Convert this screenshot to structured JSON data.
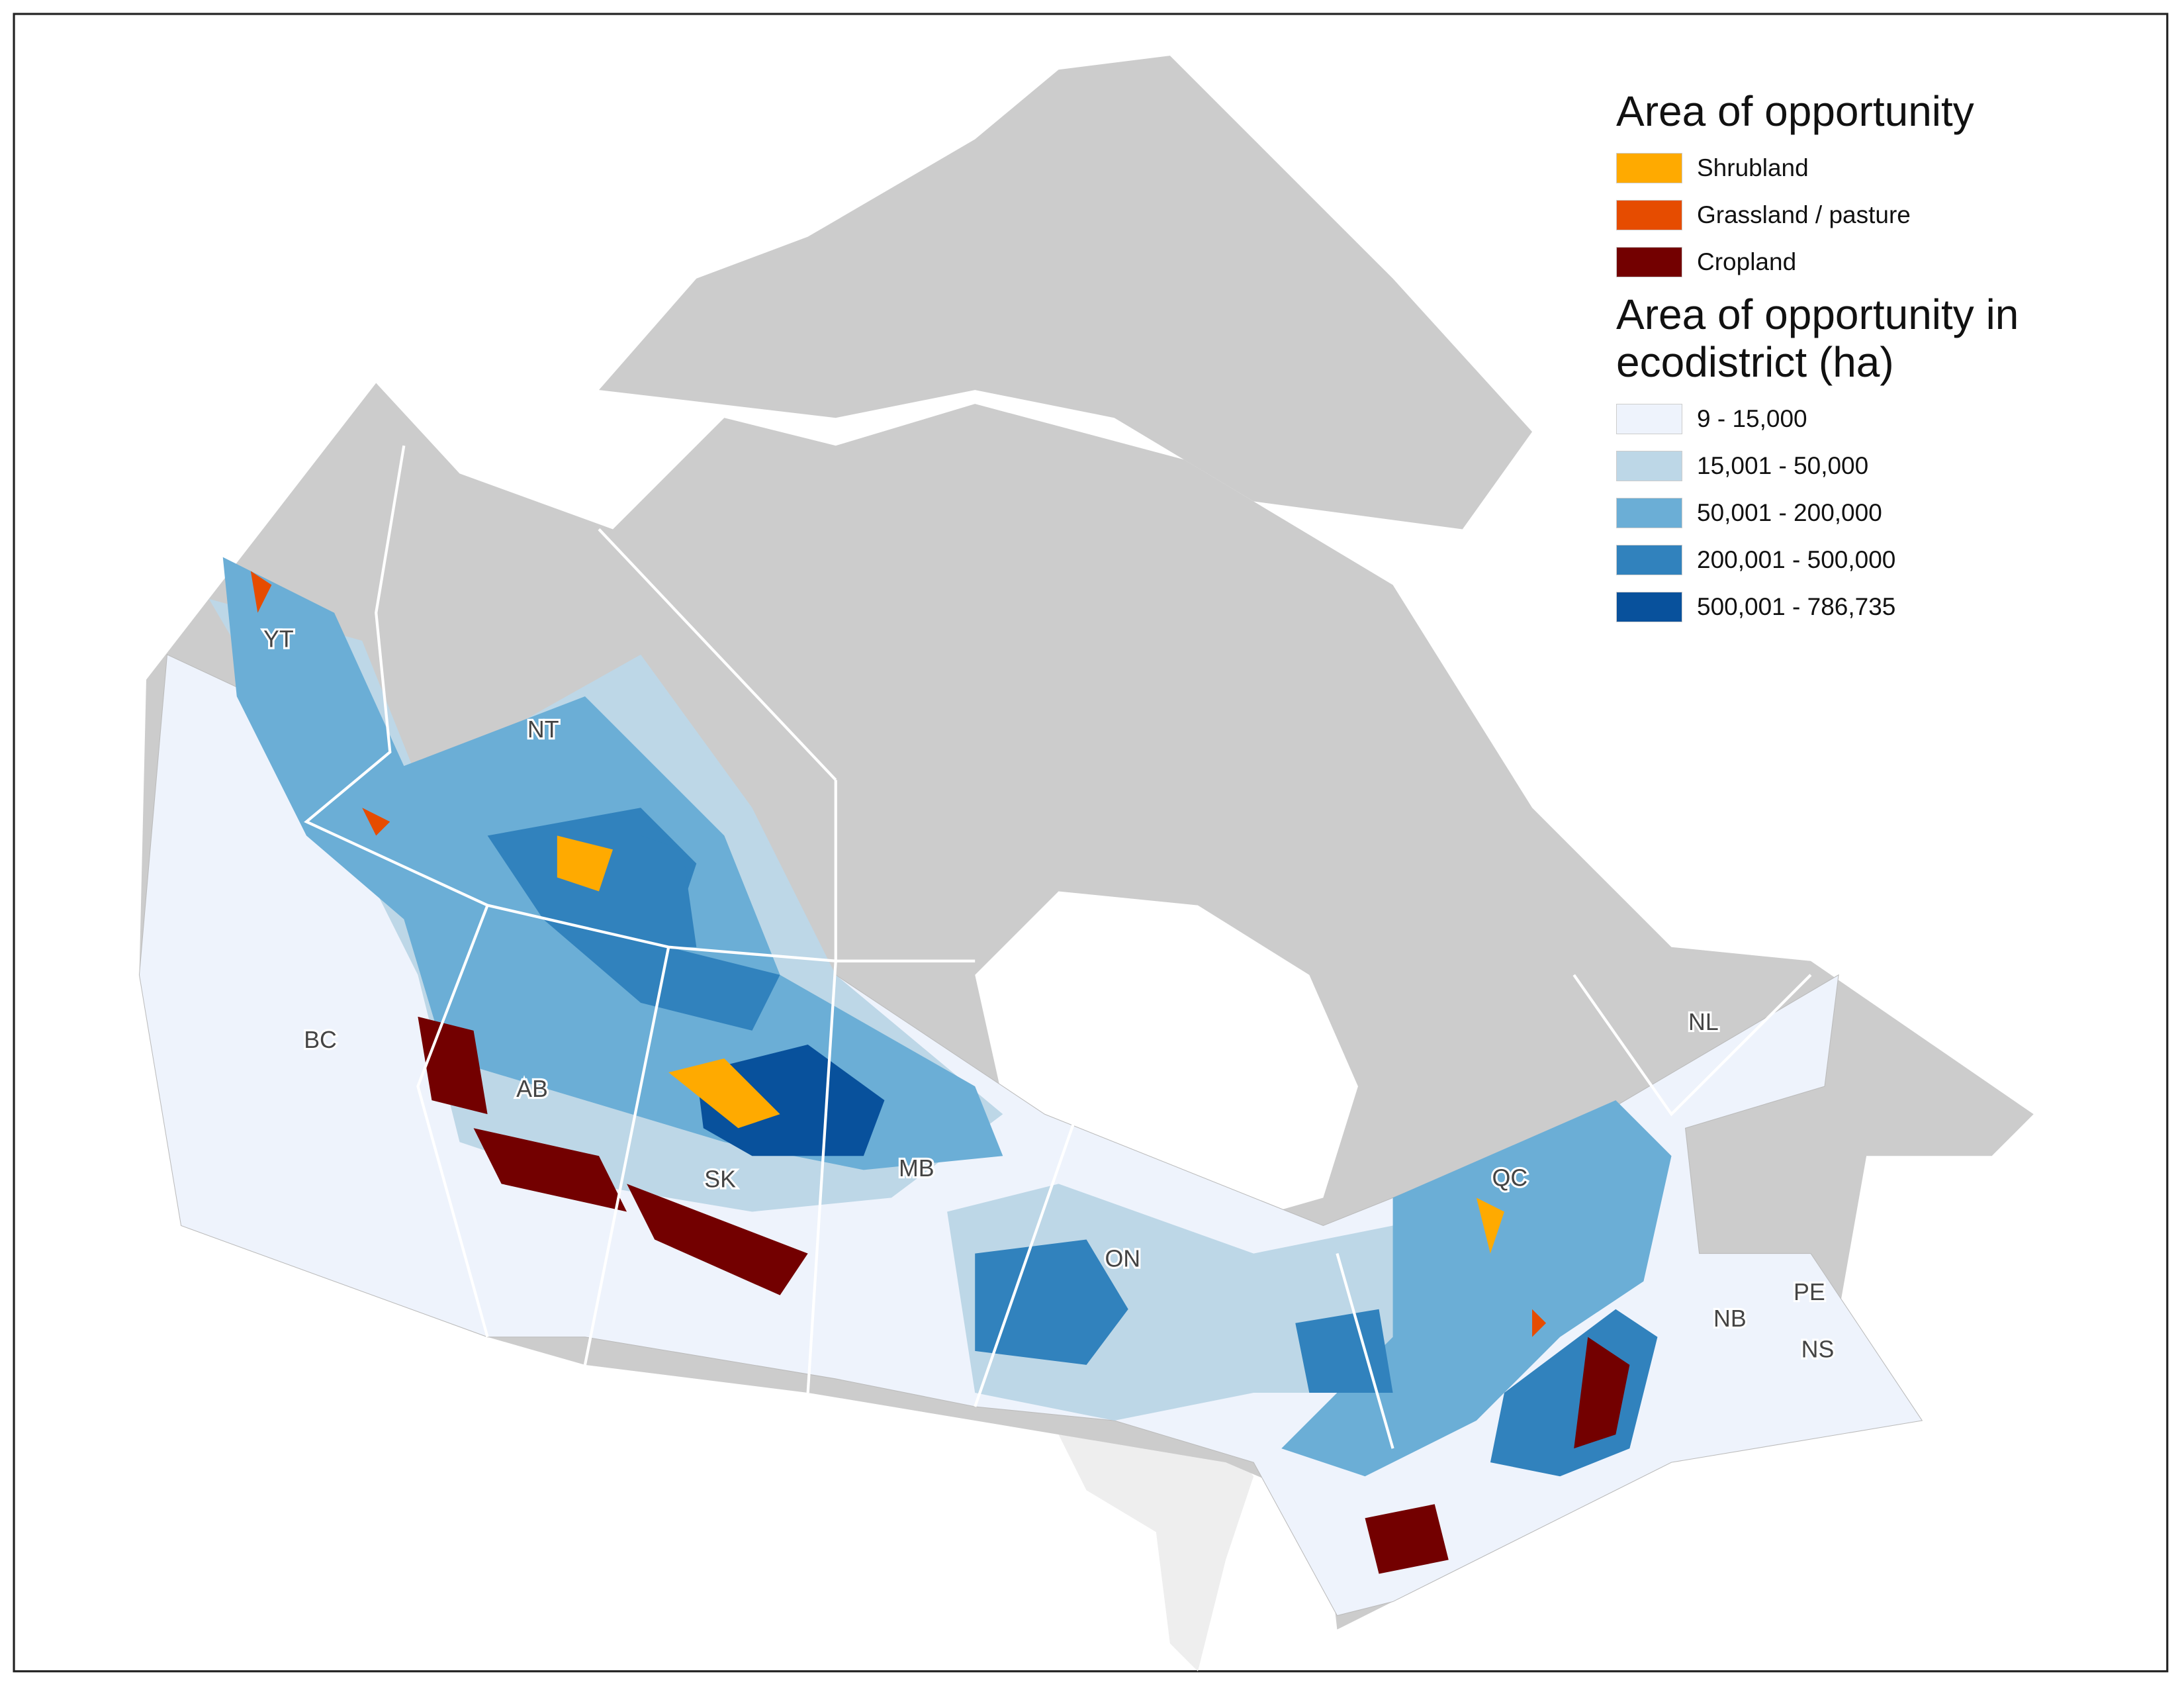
{
  "legend": {
    "land_cover": {
      "title": "Area of opportunity",
      "items": [
        {
          "label": "Shrubland",
          "color": "#ffaa00"
        },
        {
          "label": "Grassland / pasture",
          "color": "#e64c00"
        },
        {
          "label": "Cropland",
          "color": "#730000"
        }
      ]
    },
    "ecodistrict": {
      "title": "Area of opportunity in ecodistrict (ha)",
      "items": [
        {
          "label": "9 - 15,000",
          "color": "#eef3fc"
        },
        {
          "label": "15,001 - 50,000",
          "color": "#bdd7e7"
        },
        {
          "label": "50,001 - 200,000",
          "color": "#6baed6"
        },
        {
          "label": "200,001 - 500,000",
          "color": "#3182bd"
        },
        {
          "label": "500,001 - 786,735",
          "color": "#08519c"
        }
      ]
    }
  },
  "provinces": [
    "YT",
    "NT",
    "BC",
    "AB",
    "SK",
    "MB",
    "ON",
    "QC",
    "NL",
    "NB",
    "PE",
    "NS"
  ]
}
